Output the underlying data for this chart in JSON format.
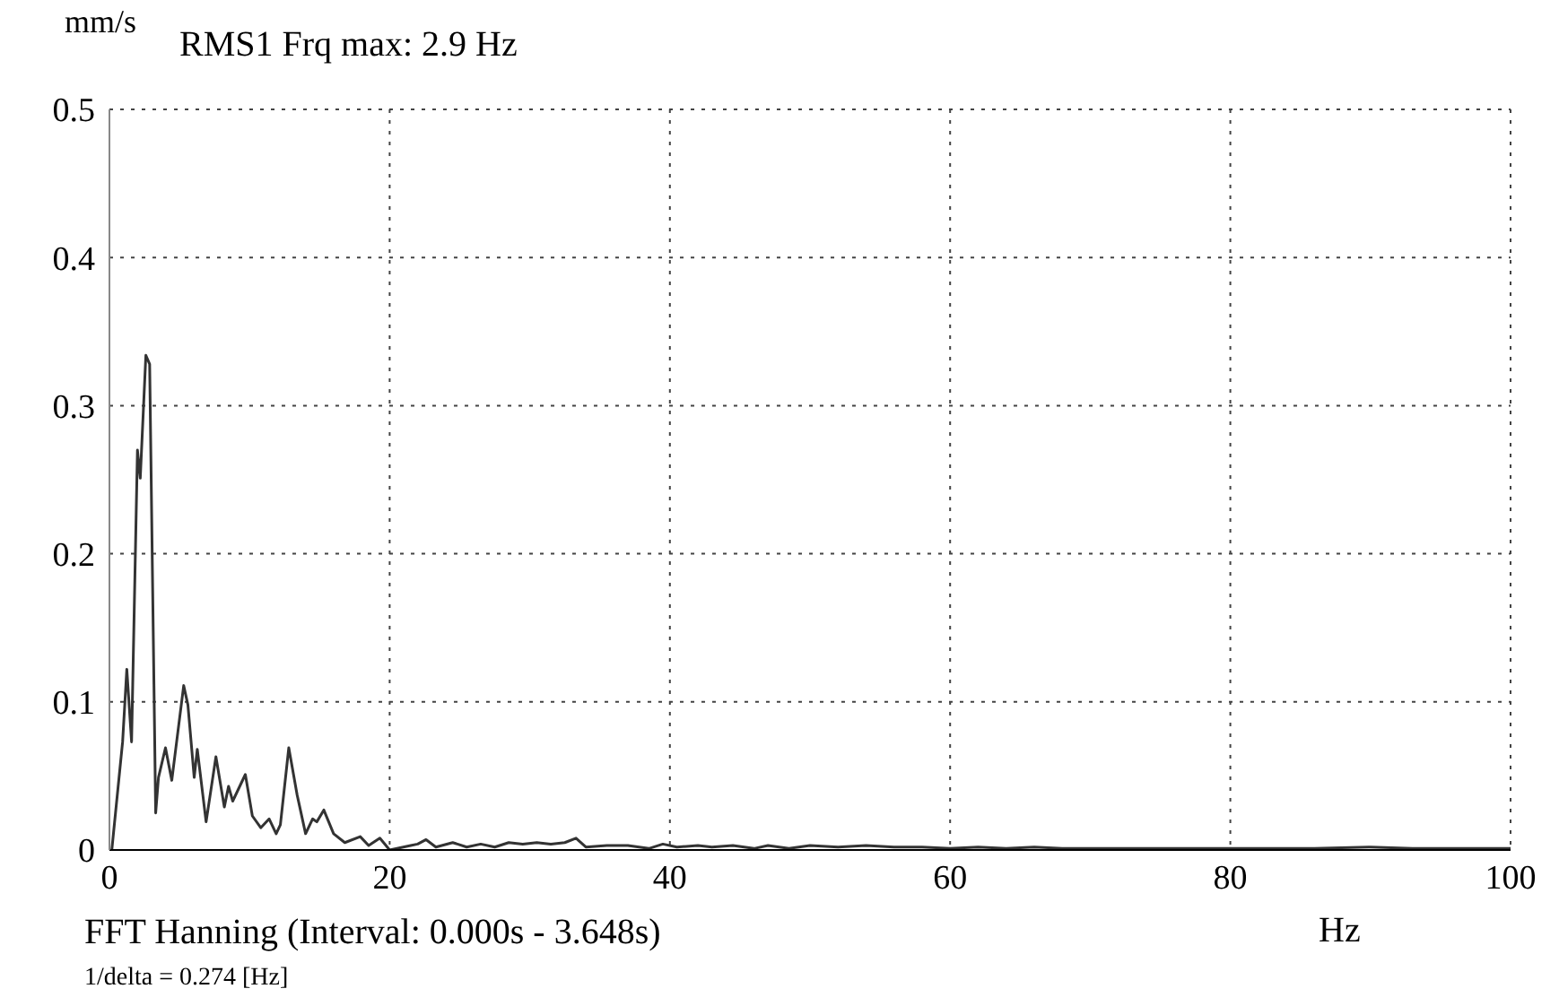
{
  "chart_data": {
    "type": "line",
    "title": "RMS1 Frq max: 2.9 Hz",
    "ylabel": "mm/s",
    "xlabel": "Hz",
    "annotations": [
      "FFT Hanning (Interval: 0.000s - 3.648s)",
      "1/delta = 0.274 [Hz]"
    ],
    "x": [
      0.17,
      0.94,
      1.24,
      1.58,
      2.0,
      2.2,
      2.6,
      2.87,
      3.3,
      3.5,
      4.0,
      4.45,
      5.3,
      5.6,
      6.05,
      6.27,
      6.9,
      7.6,
      8.2,
      8.5,
      8.8,
      9.7,
      10.2,
      10.8,
      11.4,
      11.9,
      12.2,
      12.8,
      13.4,
      14.0,
      14.5,
      14.8,
      15.3,
      16.0,
      16.8,
      17.9,
      18.5,
      19.3,
      20.0,
      21.5,
      22.0,
      22.6,
      23.3,
      24.5,
      25.5,
      26.5,
      27.5,
      28.5,
      29.5,
      30.5,
      31.5,
      32.5,
      33.3,
      34.0,
      35.5,
      37.0,
      38.5,
      39.5,
      40.5,
      42.0,
      43.0,
      44.5,
      46.0,
      47.0,
      48.5,
      50.0,
      52.0,
      54.0,
      56.0,
      58.0,
      60.0,
      62.0,
      64.0,
      66.0,
      68.0,
      70.0,
      74.0,
      78.0,
      82.0,
      86.0,
      90.0,
      93.0,
      96.0,
      100.0
    ],
    "series": [
      {
        "color": "#333333",
        "values": [
          0.0,
          0.073,
          0.122,
          0.073,
          0.27,
          0.251,
          0.334,
          0.328,
          0.025,
          0.049,
          0.069,
          0.047,
          0.111,
          0.098,
          0.049,
          0.068,
          0.019,
          0.063,
          0.029,
          0.043,
          0.033,
          0.051,
          0.023,
          0.015,
          0.021,
          0.011,
          0.017,
          0.069,
          0.037,
          0.011,
          0.021,
          0.019,
          0.027,
          0.011,
          0.005,
          0.009,
          0.003,
          0.008,
          0.0,
          0.003,
          0.004,
          0.007,
          0.002,
          0.005,
          0.002,
          0.004,
          0.002,
          0.005,
          0.004,
          0.005,
          0.004,
          0.005,
          0.008,
          0.002,
          0.003,
          0.003,
          0.001,
          0.004,
          0.002,
          0.003,
          0.002,
          0.003,
          0.001,
          0.003,
          0.001,
          0.003,
          0.002,
          0.003,
          0.002,
          0.002,
          0.001,
          0.002,
          0.001,
          0.002,
          0.001,
          0.001,
          0.001,
          0.001,
          0.001,
          0.001,
          0.002,
          0.001,
          0.001,
          0.001
        ]
      }
    ],
    "xlim": [
      0,
      100
    ],
    "xticks": [
      0,
      20,
      40,
      60,
      80,
      100
    ],
    "ylim": [
      0,
      0.5
    ],
    "yticks": [
      0,
      0.1,
      0.2,
      0.3,
      0.4,
      0.5
    ],
    "grid": true,
    "line_style": "solid",
    "marker": "none"
  }
}
